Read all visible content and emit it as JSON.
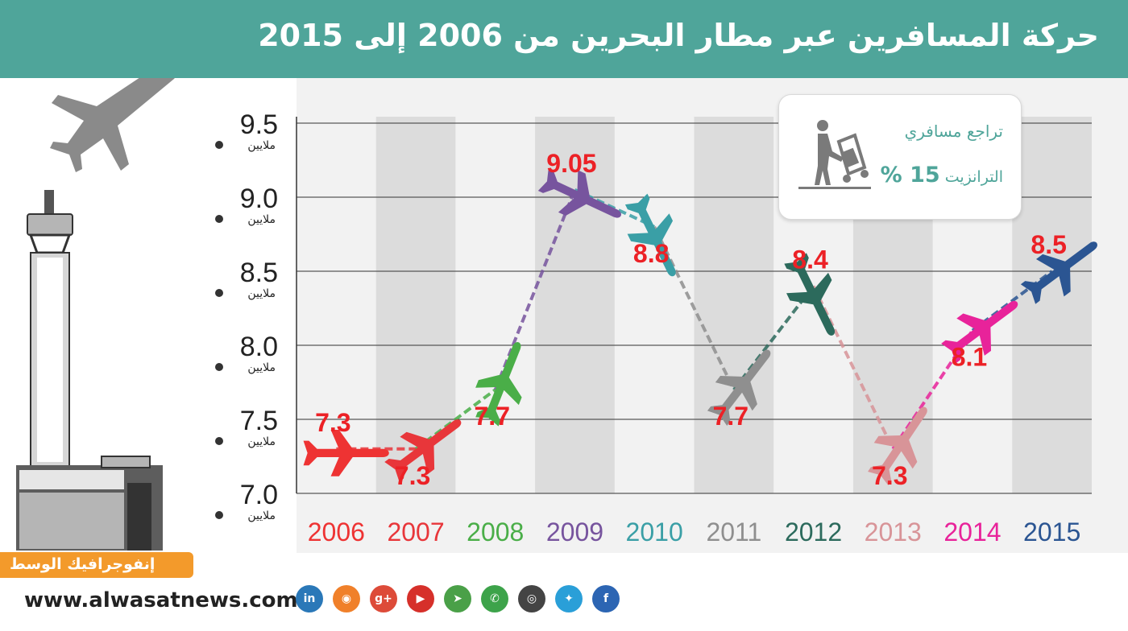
{
  "header": {
    "title": "حركة المسافرين عبر مطار البحرين من 2006 إلى 2015"
  },
  "transit_note": {
    "line1": "تراجع مسافري",
    "percent": "15 %",
    "line2": "الترانزيت"
  },
  "brand": {
    "logo_text": "إنفوجرافيك الوسط",
    "url": "www.alwasatnews.com"
  },
  "social_icons": [
    {
      "name": "linkedin-icon",
      "glyph": "in",
      "color": "#2a78b8"
    },
    {
      "name": "rss-icon",
      "glyph": "◉",
      "color": "#f0802a"
    },
    {
      "name": "google-plus-icon",
      "glyph": "g+",
      "color": "#dd4b39"
    },
    {
      "name": "youtube-icon",
      "glyph": "▶",
      "color": "#d6302a"
    },
    {
      "name": "telegram-icon",
      "glyph": "➤",
      "color": "#4aa048"
    },
    {
      "name": "whatsapp-icon",
      "glyph": "✆",
      "color": "#3da34a"
    },
    {
      "name": "instagram-icon",
      "glyph": "◎",
      "color": "#444444"
    },
    {
      "name": "twitter-icon",
      "glyph": "✦",
      "color": "#2a9fd8"
    },
    {
      "name": "facebook-icon",
      "glyph": "f",
      "color": "#2c65b3"
    }
  ],
  "chart_data": {
    "type": "line",
    "title": "حركة المسافرين عبر مطار البحرين من 2006 إلى 2015",
    "xlabel": "",
    "ylabel": "",
    "y_unit_label": "ملايين",
    "ylim": [
      7.0,
      9.5
    ],
    "yticks": [
      "7.0",
      "7.5",
      "8.0",
      "8.5",
      "9.0",
      "9.5"
    ],
    "grid": true,
    "categories": [
      "2006",
      "2007",
      "2008",
      "2009",
      "2010",
      "2011",
      "2012",
      "2013",
      "2014",
      "2015"
    ],
    "values": [
      7.3,
      7.3,
      7.7,
      9.05,
      8.8,
      7.7,
      8.4,
      7.3,
      8.1,
      8.5
    ],
    "value_labels": [
      "7.3",
      "7.3",
      "7.7",
      "9.05",
      "8.8",
      "7.7",
      "8.4",
      "7.3",
      "8.1",
      "8.5"
    ],
    "colors": [
      "#ee3333",
      "#e8363a",
      "#4aae48",
      "#77549e",
      "#3a9fa6",
      "#8f8f8f",
      "#2c6a5c",
      "#d89498",
      "#e8239a",
      "#2b5592"
    ],
    "label_color": "#ec2126"
  }
}
